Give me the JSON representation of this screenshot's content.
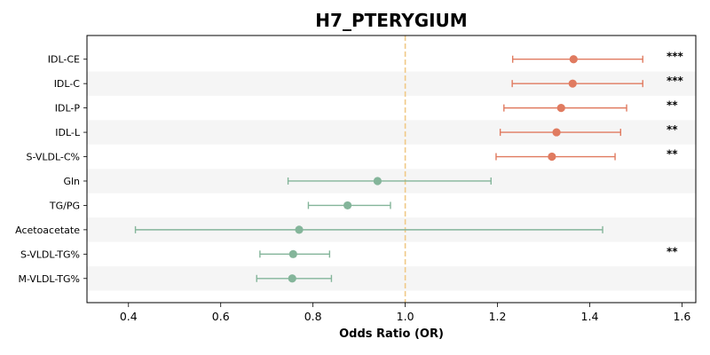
{
  "chart_data": {
    "type": "forest",
    "title": "H7_PTERYGIUM",
    "xlabel": "Odds Ratio (OR)",
    "xlim": [
      0.31,
      1.63
    ],
    "xticks": [
      "0.4",
      "0.6",
      "0.8",
      "1.0",
      "1.2",
      "1.4",
      "1.6"
    ],
    "reference_line": 1.0,
    "colors": {
      "positive": "#e07b60",
      "negative": "#84b59a",
      "reference": "#f0c987",
      "band": "#f5f5f5"
    },
    "rows": [
      {
        "label": "IDL-CE",
        "or": 1.365,
        "lower": 1.233,
        "upper": 1.515,
        "sig": "***",
        "direction": "positive"
      },
      {
        "label": "IDL-C",
        "or": 1.363,
        "lower": 1.232,
        "upper": 1.515,
        "sig": "***",
        "direction": "positive"
      },
      {
        "label": "IDL-P",
        "or": 1.338,
        "lower": 1.214,
        "upper": 1.48,
        "sig": "**",
        "direction": "positive"
      },
      {
        "label": "IDL-L",
        "or": 1.328,
        "lower": 1.206,
        "upper": 1.467,
        "sig": "**",
        "direction": "positive"
      },
      {
        "label": "S-VLDL-C%",
        "or": 1.318,
        "lower": 1.197,
        "upper": 1.455,
        "sig": "**",
        "direction": "positive"
      },
      {
        "label": "Gln",
        "or": 0.94,
        "lower": 0.746,
        "upper": 1.186,
        "sig": "",
        "direction": "negative"
      },
      {
        "label": "TG/PG",
        "or": 0.875,
        "lower": 0.79,
        "upper": 0.968,
        "sig": "",
        "direction": "negative"
      },
      {
        "label": "Acetoacetate",
        "or": 0.77,
        "lower": 0.415,
        "upper": 1.428,
        "sig": "",
        "direction": "negative"
      },
      {
        "label": "S-VLDL-TG%",
        "or": 0.757,
        "lower": 0.685,
        "upper": 0.836,
        "sig": "**",
        "direction": "negative"
      },
      {
        "label": "M-VLDL-TG%",
        "or": 0.755,
        "lower": 0.678,
        "upper": 0.84,
        "sig": "",
        "direction": "negative"
      }
    ]
  }
}
